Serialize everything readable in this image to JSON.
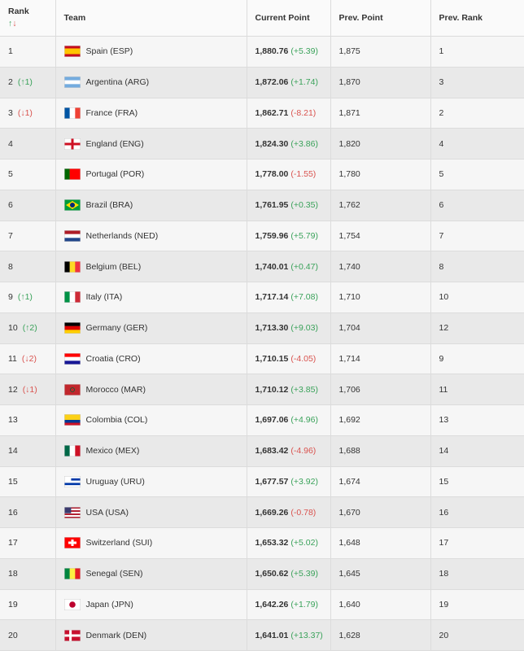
{
  "table": {
    "header": {
      "rank": "Rank",
      "sort_up": "↑",
      "sort_down": "↓",
      "team": "Team",
      "current_point": "Current Point",
      "prev_point": "Prev. Point",
      "prev_rank": "Prev. Rank"
    },
    "rows": [
      {
        "rank": "1",
        "team": "Spain (ESP)",
        "point": "1,880.76",
        "point_change": "(+5.39)",
        "point_trend": "up",
        "prev_point": "1,875",
        "prev_rank": "1"
      },
      {
        "rank": "2",
        "change": "(↑1)",
        "trend": "up",
        "team": "Argentina (ARG)",
        "point": "1,872.06",
        "point_change": "(+1.74)",
        "point_trend": "up",
        "prev_point": "1,870",
        "prev_rank": "3"
      },
      {
        "rank": "3",
        "change": "(↓1)",
        "trend": "down",
        "team": "France (FRA)",
        "point": "1,862.71",
        "point_change": "(-8.21)",
        "point_trend": "down",
        "prev_point": "1,871",
        "prev_rank": "2"
      },
      {
        "rank": "4",
        "team": "England (ENG)",
        "point": "1,824.30",
        "point_change": "(+3.86)",
        "point_trend": "up",
        "prev_point": "1,820",
        "prev_rank": "4"
      },
      {
        "rank": "5",
        "team": "Portugal (POR)",
        "point": "1,778.00",
        "point_change": "(-1.55)",
        "point_trend": "down",
        "prev_point": "1,780",
        "prev_rank": "5"
      },
      {
        "rank": "6",
        "team": "Brazil (BRA)",
        "point": "1,761.95",
        "point_change": "(+0.35)",
        "point_trend": "up",
        "prev_point": "1,762",
        "prev_rank": "6"
      },
      {
        "rank": "7",
        "team": "Netherlands (NED)",
        "point": "1,759.96",
        "point_change": "(+5.79)",
        "point_trend": "up",
        "prev_point": "1,754",
        "prev_rank": "7"
      },
      {
        "rank": "8",
        "team": "Belgium (BEL)",
        "point": "1,740.01",
        "point_change": "(+0.47)",
        "point_trend": "up",
        "prev_point": "1,740",
        "prev_rank": "8"
      },
      {
        "rank": "9",
        "change": "(↑1)",
        "trend": "up",
        "team": "Italy (ITA)",
        "point": "1,717.14",
        "point_change": "(+7.08)",
        "point_trend": "up",
        "prev_point": "1,710",
        "prev_rank": "10"
      },
      {
        "rank": "10",
        "change": "(↑2)",
        "trend": "up",
        "team": "Germany (GER)",
        "point": "1,713.30",
        "point_change": "(+9.03)",
        "point_trend": "up",
        "prev_point": "1,704",
        "prev_rank": "12"
      },
      {
        "rank": "11",
        "change": "(↓2)",
        "trend": "down",
        "team": "Croatia (CRO)",
        "point": "1,710.15",
        "point_change": "(-4.05)",
        "point_trend": "down",
        "prev_point": "1,714",
        "prev_rank": "9"
      },
      {
        "rank": "12",
        "change": "(↓1)",
        "trend": "down",
        "team": "Morocco (MAR)",
        "point": "1,710.12",
        "point_change": "(+3.85)",
        "point_trend": "up",
        "prev_point": "1,706",
        "prev_rank": "11"
      },
      {
        "rank": "13",
        "team": "Colombia (COL)",
        "point": "1,697.06",
        "point_change": "(+4.96)",
        "point_trend": "up",
        "prev_point": "1,692",
        "prev_rank": "13"
      },
      {
        "rank": "14",
        "team": "Mexico (MEX)",
        "point": "1,683.42",
        "point_change": "(-4.96)",
        "point_trend": "down",
        "prev_point": "1,688",
        "prev_rank": "14"
      },
      {
        "rank": "15",
        "team": "Uruguay (URU)",
        "point": "1,677.57",
        "point_change": "(+3.92)",
        "point_trend": "up",
        "prev_point": "1,674",
        "prev_rank": "15"
      },
      {
        "rank": "16",
        "team": "USA (USA)",
        "point": "1,669.26",
        "point_change": "(-0.78)",
        "point_trend": "down",
        "prev_point": "1,670",
        "prev_rank": "16"
      },
      {
        "rank": "17",
        "team": "Switzerland (SUI)",
        "point": "1,653.32",
        "point_change": "(+5.02)",
        "point_trend": "up",
        "prev_point": "1,648",
        "prev_rank": "17"
      },
      {
        "rank": "18",
        "team": "Senegal (SEN)",
        "point": "1,650.62",
        "point_change": "(+5.39)",
        "point_trend": "up",
        "prev_point": "1,645",
        "prev_rank": "18"
      },
      {
        "rank": "19",
        "team": "Japan (JPN)",
        "point": "1,642.26",
        "point_change": "(+1.79)",
        "point_trend": "up",
        "prev_point": "1,640",
        "prev_rank": "19"
      },
      {
        "rank": "20",
        "team": "Denmark (DEN)",
        "point": "1,641.01",
        "point_change": "(+13.37)",
        "point_trend": "up",
        "prev_point": "1,628",
        "prev_rank": "20"
      }
    ]
  }
}
